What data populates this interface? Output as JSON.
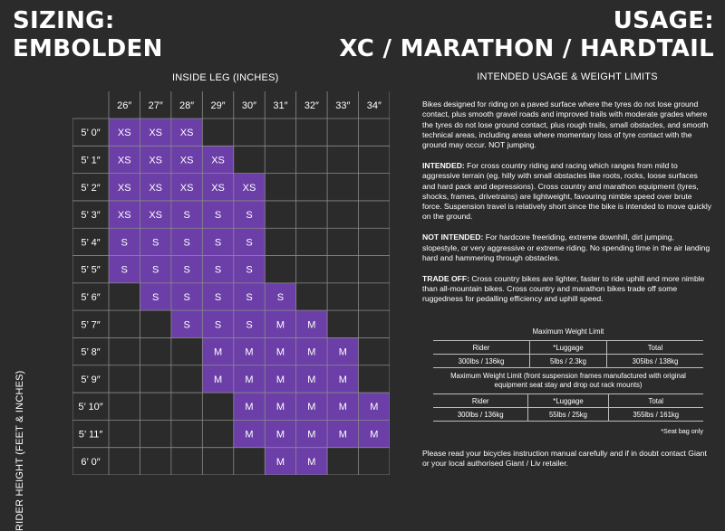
{
  "header": {
    "left_title_line1": "SIZING:",
    "left_title_line2": "EMBOLDEN",
    "right_title_line1": "USAGE:",
    "right_title_line2": "XC / MARATHON / HARDTAIL"
  },
  "size_chart": {
    "inside_leg_label": "INSIDE LEG (INCHES)",
    "rider_height_label": "RIDER HEIGHT (FEET & INCHES)",
    "leg_sizes": [
      "26″",
      "27″",
      "28″",
      "29″",
      "30″",
      "31″",
      "32″",
      "33″",
      "34″"
    ],
    "heights": [
      "5’ 0″",
      "5’ 1″",
      "5’ 2″",
      "5’ 3″",
      "5’ 4″",
      "5’ 5″",
      "5’ 6″",
      "5’ 7″",
      "5’ 8″",
      "5’ 9″",
      "5’ 10″",
      "5’ 11″",
      "6’ 0″"
    ],
    "cells": [
      [
        "XS",
        "XS",
        "XS",
        "",
        "",
        "",
        "",
        "",
        ""
      ],
      [
        "XS",
        "XS",
        "XS",
        "XS",
        "",
        "",
        "",
        "",
        ""
      ],
      [
        "XS",
        "XS",
        "XS",
        "XS",
        "XS",
        "",
        "",
        "",
        ""
      ],
      [
        "XS",
        "XS",
        "S",
        "S",
        "S",
        "",
        "",
        "",
        ""
      ],
      [
        "S",
        "S",
        "S",
        "S",
        "S",
        "",
        "",
        "",
        ""
      ],
      [
        "S",
        "S",
        "S",
        "S",
        "S",
        "",
        "",
        "",
        ""
      ],
      [
        "",
        "S",
        "S",
        "S",
        "S",
        "S",
        "",
        "",
        ""
      ],
      [
        "",
        "",
        "S",
        "S",
        "S",
        "M",
        "M",
        "",
        ""
      ],
      [
        "",
        "",
        "",
        "M",
        "M",
        "M",
        "M",
        "M",
        ""
      ],
      [
        "",
        "",
        "",
        "M",
        "M",
        "M",
        "M",
        "M",
        ""
      ],
      [
        "",
        "",
        "",
        "",
        "M",
        "M",
        "M",
        "M",
        "M"
      ],
      [
        "",
        "",
        "",
        "",
        "M",
        "M",
        "M",
        "M",
        "M"
      ],
      [
        "",
        "",
        "",
        "",
        "",
        "M",
        "M",
        "",
        ""
      ]
    ],
    "fill_color": "#6c3fa8",
    "grid_color": "#8a8a8a"
  },
  "usage": {
    "heading": "INTENDED USAGE & WEIGHT LIMITS",
    "intro": "Bikes designed for  riding on a paved surface where the tyres do not lose ground contact, plus smooth gravel roads and improved trails with moderate grades where the tyres do not lose ground contact, plus rough trails, small obstacles, and smooth technical areas, including areas where momentary loss of tyre contact with the ground may occur. NOT jumping.",
    "intended_label": "INTENDED:",
    "intended_text": " For cross country riding and racing which ranges from mild to aggressive terrain (eg. hilly with small obstacles like roots, rocks, loose surfaces and hard pack and depressions). Cross country and marathon equipment (tyres, shocks, frames, drivetrains) are lightweight, favouring nimble speed over brute force. Suspension travel is relatively short since the bike is intended to move quickly on the ground.",
    "not_intended_label": "NOT INTENDED:",
    "not_intended_text": " For hardcore freeriding, extreme downhill, dirt jumping, slopestyle, or very aggressive or extreme riding. No spending time in the air landing hard and hammering through obstacles.",
    "trade_off_label": "TRADE OFF:",
    "trade_off_text": " Cross country bikes are lighter, faster to ride uphill and more nimble than all-mountain bikes. Cross country and marathon bikes trade off some ruggedness for pedalling efficiency and uphill speed."
  },
  "weight_limits": {
    "table1_title": "Maximum Weight Limit",
    "table1_headers": [
      "Rider",
      "*Luggage",
      "Total"
    ],
    "table1_values": [
      "300lbs / 136kg",
      "5lbs / 2.3kg",
      "305lbs / 138kg"
    ],
    "table2_title": "Maximum Weight Limit (front suspension frames manufactured with original equipment seat stay and drop out rack mounts)",
    "table2_headers": [
      "Rider",
      "*Luggage",
      "Total"
    ],
    "table2_values": [
      "300lbs / 136kg",
      "55lbs / 25kg",
      "355lbs / 161kg"
    ],
    "seat_bag_note": "*Seat bag only"
  },
  "footer": {
    "note": "Please read your bicycles instruction manual carefully and if in doubt contact Giant or your local authorised Giant / Liv retailer."
  }
}
